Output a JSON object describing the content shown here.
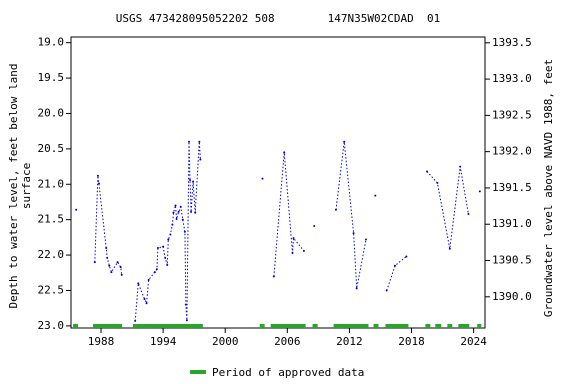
{
  "chart_data": {
    "type": "line",
    "title": "USGS 473428095052202 508        147N35W02CDAD  01",
    "y_label": [
      "Depth to water level, feet below land",
      "surface"
    ],
    "y2_label": "Groundwater level above NAVD 1988, feet",
    "xlim": [
      1985.1,
      2025.1
    ],
    "xticks": [
      1988,
      1994,
      2000,
      2006,
      2012,
      2018,
      2024
    ],
    "ylim": [
      18.92,
      23.03
    ],
    "y_inverted": true,
    "yticks": [
      {
        "value": 19,
        "label": "19.0"
      },
      19.5,
      {
        "value": 20,
        "label": "20.0"
      },
      20.5,
      {
        "value": 21,
        "label": "21.0"
      },
      21.5,
      {
        "value": 22,
        "label": "22.0"
      },
      22.5,
      {
        "value": 23,
        "label": "23.0"
      }
    ],
    "y2lim": [
      1389.57,
      1393.58
    ],
    "y2ticks": [
      {
        "value": 1390,
        "label": "1390.0"
      },
      1390.5,
      {
        "value": 1391,
        "label": "1391.0"
      },
      1391.5,
      {
        "value": 1392,
        "label": "1392.0"
      },
      1392.5,
      {
        "value": 1393,
        "label": "1393.0"
      },
      1393.5
    ],
    "series": [
      {
        "color": "#0000cc",
        "x": [
          1985.6,
          null,
          1987.4,
          1987.7,
          1987.8,
          1988.5,
          1988.6,
          1988.8,
          1989.0,
          1989.6,
          1989.9,
          1990.0,
          null,
          1991.3,
          1991.6,
          1992.2,
          1992.4,
          1992.6,
          1993.2,
          1993.4,
          1993.5,
          1994.0,
          1994.2,
          1994.4,
          1994.5,
          1994.7,
          1994.9,
          1995.0,
          1995.2,
          1995.3,
          1995.5,
          1995.7,
          1995.9,
          1996.1,
          1996.2,
          1996.3,
          1996.5,
          1996.6,
          1996.7,
          1996.9,
          1997.1,
          1997.5,
          1997.6,
          null,
          2003.6,
          null,
          2004.7,
          2005.7,
          2006.5,
          2006.6,
          2007.6,
          null,
          2008.6,
          null,
          2010.7,
          2011.5,
          2012.4,
          2012.7,
          2013.6,
          null,
          2014.5,
          null,
          2015.6,
          2016.4,
          2017.5,
          null,
          2019.5,
          2020.5,
          2021.7,
          2022.7,
          2023.5,
          null,
          2024.6
        ],
        "values": [
          21.36,
          null,
          22.1,
          20.88,
          20.99,
          21.9,
          22.04,
          22.15,
          22.24,
          22.1,
          22.17,
          22.28,
          null,
          22.93,
          22.4,
          22.62,
          22.68,
          22.35,
          22.24,
          22.2,
          21.9,
          21.88,
          22.04,
          22.14,
          21.78,
          21.71,
          21.57,
          21.4,
          21.3,
          21.49,
          21.39,
          21.32,
          21.5,
          21.67,
          22.7,
          22.92,
          20.4,
          20.94,
          21.39,
          20.96,
          21.4,
          20.4,
          20.65,
          null,
          20.92,
          null,
          22.3,
          20.55,
          21.97,
          21.76,
          21.94,
          null,
          21.59,
          null,
          21.36,
          20.4,
          21.69,
          22.47,
          21.78,
          null,
          21.16,
          null,
          22.5,
          22.15,
          22.02,
          null,
          20.82,
          20.98,
          21.91,
          20.75,
          21.42,
          null,
          21.1
        ]
      }
    ],
    "approved_periods": {
      "name": "Period of approved data",
      "color": "#2aa52a",
      "spans": [
        [
          1985.3,
          1985.78
        ],
        [
          1987.23,
          1990.03
        ],
        [
          1991.09,
          1997.84
        ],
        [
          2003.33,
          2003.81
        ],
        [
          2004.39,
          2007.77
        ],
        [
          2008.44,
          2008.93
        ],
        [
          2010.47,
          2013.84
        ],
        [
          2014.33,
          2014.81
        ],
        [
          2015.48,
          2017.7
        ],
        [
          2019.34,
          2019.82
        ],
        [
          2020.3,
          2020.88
        ],
        [
          2021.46,
          2021.94
        ],
        [
          2022.52,
          2023.58
        ],
        [
          2024.35,
          2024.74
        ]
      ]
    }
  }
}
